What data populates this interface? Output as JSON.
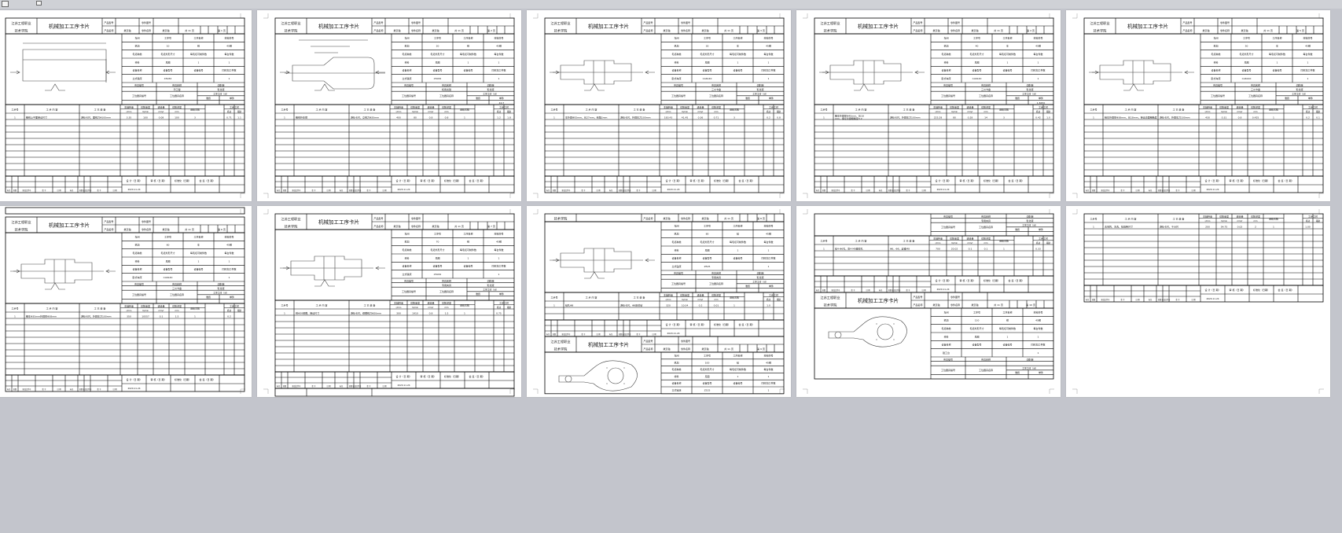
{
  "viewer": {
    "toolbar_icons": [
      "page-view-icon",
      "layout-icon"
    ],
    "background": "#c3c5cc"
  },
  "card": {
    "school_line1": "江苏工程职业",
    "school_line2": "技术学院",
    "title": "机械加工工序卡片",
    "product_model_label": "产品型号",
    "product_name_label": "产品名称",
    "part_no_label": "零件图号",
    "part_name_label": "零件名称",
    "part_name_value": "拨叉轴",
    "product_name_value": "拨叉轴",
    "total_pages": "共 11 页",
    "grid_labels_1": [
      "车间",
      "工序号",
      "工序名称",
      "材料牌号"
    ],
    "grid_labels_2": [
      "毛坯种类",
      "毛坯外形尺寸",
      "每毛坯可制件数",
      "每台件数"
    ],
    "grid_labels_3": [
      "设备名称",
      "设备型号",
      "设备编号",
      "同时加工件数"
    ],
    "workshop": "机加",
    "material": "45钢",
    "blank_type": "棒料",
    "blank_size": "见图",
    "parts_per_blank": "1",
    "parts_per_unit": "1",
    "simultaneous": "1",
    "fixture_labels": [
      "夹具编号",
      "夹具名称",
      "切削液"
    ],
    "station_labels": [
      "工位器具编号",
      "工位器具名称",
      "工序工时（分）"
    ],
    "time_labels": [
      "准终",
      "单件"
    ],
    "columns": [
      "工步号",
      "工 步 内 容",
      "工 艺 装 备",
      "主轴转速",
      "切削速度",
      "进给量",
      "切削深度",
      "进给次数",
      "工步工时"
    ],
    "column_units": [
      "r/min",
      "m/min",
      "mm/r",
      "mm"
    ],
    "time_sub": [
      "机动",
      "辅助"
    ],
    "footer_sign": [
      "设 计（日 期）",
      "审 核（日 期）",
      "标准化（日期）",
      "会 签（日 期）"
    ],
    "footer_marks": [
      "标记",
      "处数",
      "更改文件号",
      "签 字",
      "日 期",
      "标记",
      "处数",
      "更改文件号",
      "签 字",
      "日 期"
    ],
    "footer_date": "2020.11.24"
  },
  "pages": [
    {
      "page_no": "第 1 页",
      "op_no": "10",
      "op_name": "铣",
      "equipment": "立式铣床",
      "model": "X5032",
      "fixture": "平口钳",
      "coolant": "乳化液",
      "unit_time": "",
      "step": {
        "no": "1",
        "content": "粗铣上平面保证尺寸",
        "tools": "游标卡尺，面铣刀Φ100mm",
        "speed": "3.35",
        "vc": "100",
        "feed": "0.08",
        "depth": "100",
        "passes": "3",
        "t1": "0.71",
        "t2": "1.1"
      },
      "drawing": "bar"
    },
    {
      "page_no": "第 2 页",
      "op_no": "20",
      "op_name": "铣",
      "equipment": "立式铣床",
      "model": "X5032",
      "fixture": "机用虎钳",
      "coolant": "乳化液",
      "unit_time": "40.7",
      "step": {
        "no": "1",
        "content": "粗铣外轮廓",
        "tools": "游标卡尺，立铣刀Φ20mm",
        "speed": "400",
        "vc": "80",
        "feed": "0.8",
        "depth": "0.8",
        "passes": "1",
        "t1": "1.2",
        "t2": "1.8"
      },
      "drawing": "profile"
    },
    {
      "page_no": "第 3 页",
      "op_no": "30",
      "op_name": "车",
      "equipment": "卧式车床",
      "model": "CA6140",
      "fixture": "三爪卡盘",
      "coolant": "乳化液",
      "unit_time": "",
      "step": {
        "no": "1",
        "content": "车外圆Φ55mm，长27mm，倒角2mm",
        "tools": "游标卡尺，外圆车刀100mm",
        "speed": "183.43",
        "vc": "41.45",
        "feed": "0.36",
        "depth": "0.71",
        "passes": "3",
        "t1": "0.2",
        "t2": "0.8"
      },
      "drawing": "shaft"
    },
    {
      "page_no": "第 4 页",
      "op_no": "40",
      "op_name": "车",
      "equipment": "卧式车床",
      "model": "CA6140",
      "fixture": "三爪卡盘",
      "coolant": "乳化液",
      "unit_time": "1.8250",
      "step": {
        "no": "1",
        "content": "粗车外圆至Φ40mm，长18mm，保证表面粗糙度3.2",
        "tools": "游标卡尺，外圆车刀100mm",
        "speed": "225.28",
        "vc": "80",
        "feed": "0.28",
        "depth": "14",
        "passes": "3",
        "t1": "0.42",
        "t2": "1.0"
      },
      "drawing": "shaft"
    },
    {
      "page_no": "第 5 页",
      "op_no": "50",
      "op_name": "车",
      "equipment": "卧式车床",
      "model": "CA6140",
      "fixture": "三爪卡盘",
      "coolant": "乳化液",
      "unit_time": "",
      "step": {
        "no": "1",
        "content": "精车外圆至Φ38mm，长18mm，保证表面粗糙度",
        "tools": "游标卡尺，外圆车刀100mm",
        "speed": "430",
        "vc": "0.31",
        "feed": "0.8",
        "depth": "0.425",
        "passes": "1",
        "t1": "0.2",
        "t2": "0.1"
      },
      "drawing": "shaft"
    },
    {
      "page_no": "第 6 页",
      "op_no": "60",
      "op_name": "车",
      "equipment": "卧式车床",
      "model": "CA6140",
      "fixture": "三爪卡盘",
      "coolant": "乳化液",
      "unit_time": "",
      "step": {
        "no": "1",
        "content": "粗车Φ35mm外圆至Φ38mm",
        "tools": "游标卡尺，外圆车刀100mm",
        "speed": "350",
        "vc": "10557",
        "feed": "0.1",
        "depth": "1.5",
        "passes": "1",
        "t1": "0.2",
        "t2": ""
      },
      "drawing": "shaft2"
    },
    {
      "page_no": "第 7 页",
      "op_no": "70",
      "op_name": "铣",
      "equipment": "立式铣床",
      "model": "X5032",
      "fixture": "专用夹具",
      "coolant": "乳化液",
      "unit_time": "",
      "step": {
        "no": "1",
        "content": "铣Φ20键槽，保证尺寸",
        "tools": "游标卡尺，键槽铣刀Φ20mm",
        "speed": "300",
        "vc": "1910",
        "feed": "0.8",
        "depth": "1.5",
        "passes": "1",
        "t1": "0.75",
        "t2": ""
      },
      "drawing": "shaft3"
    },
    {
      "page_no": "第 8 页",
      "op_no": "80",
      "op_name": "钻",
      "equipment": "立式钻床",
      "model": "Z525",
      "fixture": "专用夹具",
      "coolant": "乳化液",
      "unit_time": "",
      "step": {
        "no": "1",
        "content": "钻孔Φ8",
        "tools": "游标卡尺，Φ8麻花钻",
        "speed": "320",
        "vc": "10.04",
        "feed": "0.2",
        "depth": "0.01",
        "passes": "1",
        "t1": "1.0",
        "t2": ""
      },
      "drawing": "shaft"
    },
    {
      "page_no": "第 9 页",
      "op_no": "100",
      "op_name": "钻",
      "equipment": "立式钻床",
      "model": "Z525",
      "fixture": "专用夹具",
      "coolant": "乳化液",
      "unit_time": "",
      "step": {
        "no": "1",
        "content": "钻4-Φ6孔，攻4-M8螺纹孔",
        "tools": "Φ6，Φ8，丝锥M8",
        "speed": "700",
        "vc": "20.02",
        "feed": "0.1",
        "depth": "0.1",
        "passes": "1",
        "t1": "0.33",
        "t2": ""
      },
      "drawing": "fork"
    },
    {
      "page_no": "第 10 页",
      "op_no": "110",
      "op_name": "钳",
      "equipment": "钳工台",
      "model": "",
      "fixture": "",
      "coolant": "",
      "unit_time": "",
      "step": {
        "no": "1",
        "content": "去毛刺，清洗，检验各尺寸",
        "tools": "游标卡尺，千分尺",
        "speed": "200",
        "vc": "54.75",
        "feed": "0.02",
        "depth": "2",
        "passes": "1",
        "t1": "1.00",
        "t2": ""
      },
      "drawing": "fork"
    }
  ]
}
